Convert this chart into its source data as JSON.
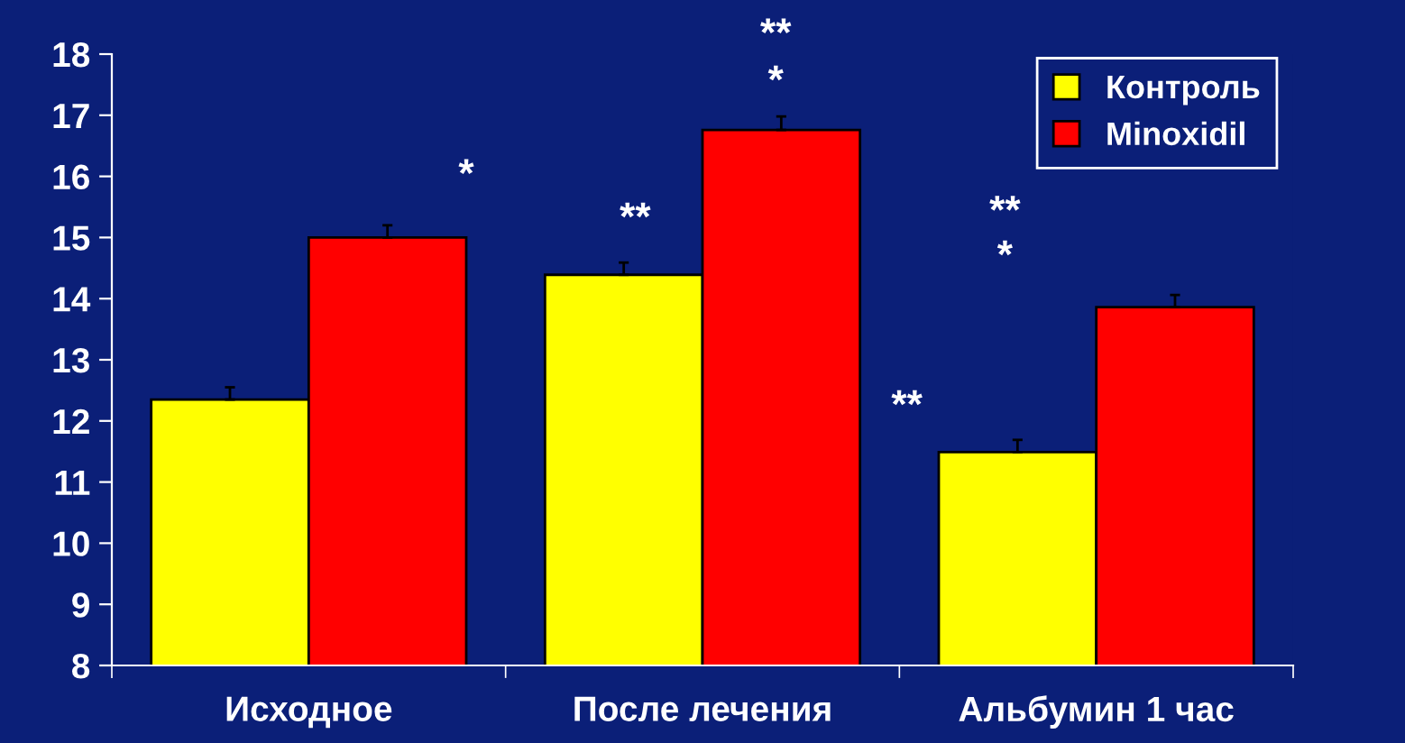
{
  "chart_data": {
    "type": "bar",
    "categories": [
      "Исходное",
      "После лечения",
      "Альбумин 1 час"
    ],
    "series": [
      {
        "name": "Контроль",
        "color": "#ffff00",
        "values": [
          12.35,
          14.39,
          11.49
        ],
        "errors": [
          0.2,
          0.2,
          0.2
        ]
      },
      {
        "name": "Minoxidil",
        "color": "#ff0000",
        "values": [
          15.0,
          16.76,
          13.86
        ],
        "errors": [
          0.2,
          0.22,
          0.2
        ]
      }
    ],
    "ylim": [
      8,
      18
    ],
    "yticks": [
      8,
      9,
      10,
      11,
      12,
      13,
      14,
      15,
      16,
      17,
      18
    ],
    "legend": "top right",
    "grid": false,
    "annotations": [
      "*",
      "**",
      "**",
      "*",
      "**",
      "*",
      "**"
    ]
  }
}
